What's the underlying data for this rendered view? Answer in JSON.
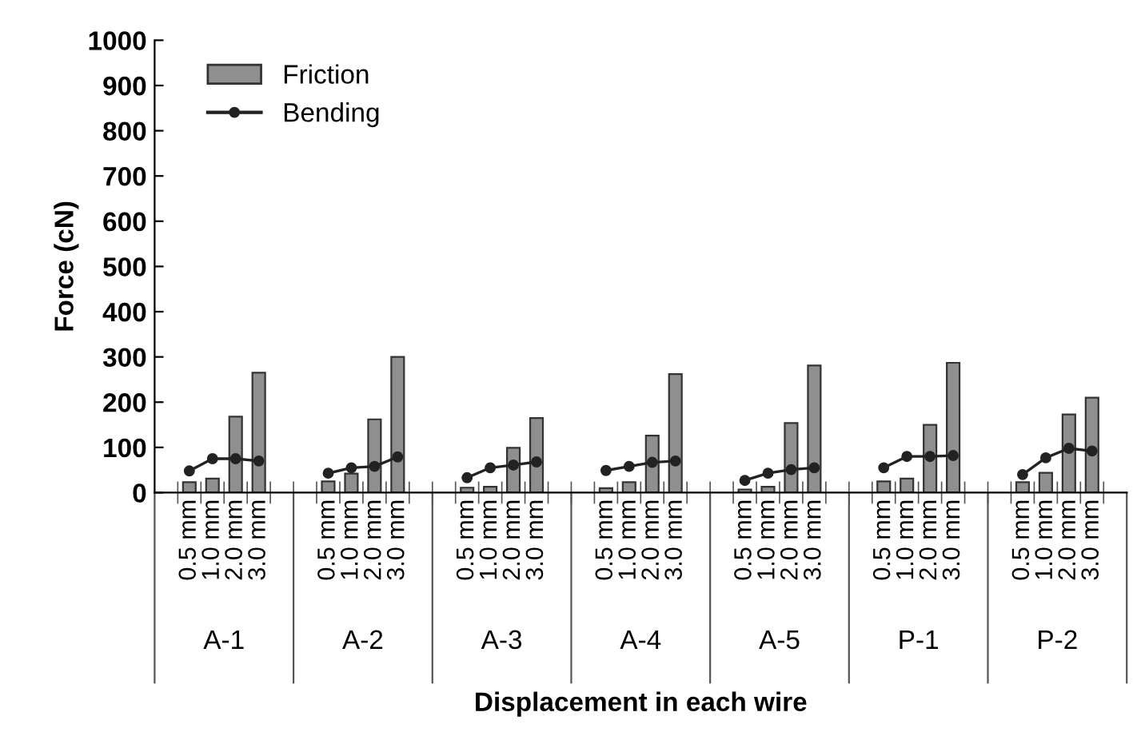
{
  "chart_data": {
    "type": "bar",
    "xlabel": "Displacement in each wire",
    "ylabel": "Force (cN)",
    "categories": [
      null,
      "0.5 mm",
      "1.0 mm",
      "2.0 mm",
      "3.0 mm",
      null,
      null,
      "0.5 mm",
      "1.0 mm",
      "2.0 mm",
      "3.0 mm",
      null,
      null,
      "0.5 mm",
      "1.0 mm",
      "2.0 mm",
      "3.0 mm",
      null,
      null,
      "0.5 mm",
      "1.0 mm",
      "2.0 mm",
      "3.0 mm",
      null,
      null,
      "0.5 mm",
      "1.0 mm",
      "2.0 mm",
      "3.0 mm",
      null,
      null,
      "0.5 mm",
      "1.0 mm",
      "2.0 mm",
      "3.0 mm",
      null,
      null,
      "0.5 mm",
      "1.0 mm",
      "2.0 mm",
      "3.0 mm",
      null
    ],
    "series": [
      {
        "name": "Friction",
        "color": "#8f8f8f",
        "values": [
          null,
          23,
          31,
          168,
          265,
          null,
          null,
          25,
          42,
          162,
          300,
          null,
          null,
          11,
          13,
          99,
          165,
          null,
          null,
          10,
          23,
          126,
          262,
          null,
          null,
          7,
          13,
          154,
          281,
          null,
          null,
          25,
          31,
          150,
          287,
          null,
          null,
          23,
          44,
          173,
          210,
          null
        ]
      },
      {
        "name": "Bending",
        "type": "line",
        "color": "#222222",
        "marker": "circle",
        "values": [
          null,
          48,
          75,
          75,
          70,
          null,
          null,
          43,
          55,
          58,
          79,
          null,
          null,
          33,
          55,
          61,
          68,
          null,
          null,
          49,
          58,
          67,
          70,
          null,
          null,
          27,
          43,
          51,
          55,
          null,
          null,
          55,
          80,
          80,
          82,
          null,
          null,
          40,
          77,
          98,
          92,
          null
        ]
      }
    ],
    "annotations": [
      "A-1",
      "A-2",
      "A-3",
      "A-4",
      "A-5",
      "P-1",
      "P-2"
    ],
    "ylim": [
      0,
      1000
    ],
    "yticks": [
      0,
      100,
      200,
      300,
      400,
      500,
      600,
      700,
      800,
      900,
      1000
    ],
    "grid": false,
    "legend": "top left"
  }
}
